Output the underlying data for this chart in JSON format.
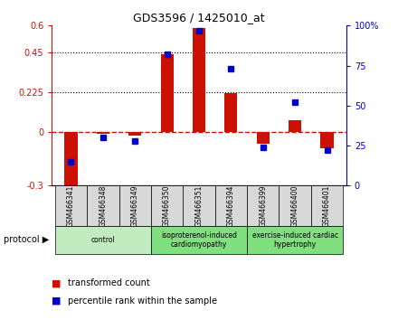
{
  "title": "GDS3596 / 1425010_at",
  "samples": [
    "GSM466341",
    "GSM466348",
    "GSM466349",
    "GSM466350",
    "GSM466351",
    "GSM466394",
    "GSM466399",
    "GSM466400",
    "GSM466401"
  ],
  "transformed_count": [
    -0.305,
    -0.01,
    -0.02,
    0.44,
    0.585,
    0.22,
    -0.065,
    0.07,
    -0.09
  ],
  "percentile_rank": [
    15,
    30,
    28,
    82,
    97,
    73,
    24,
    52,
    22
  ],
  "left_ylim": [
    -0.3,
    0.6
  ],
  "right_ylim": [
    0,
    100
  ],
  "left_yticks": [
    -0.3,
    0,
    0.225,
    0.45,
    0.6
  ],
  "right_yticks": [
    0,
    25,
    50,
    75,
    100
  ],
  "left_ytick_labels": [
    "-0.3",
    "0",
    "0.225",
    "0.45",
    "0.6"
  ],
  "right_ytick_labels": [
    "0",
    "25",
    "50",
    "75",
    "100%"
  ],
  "hlines": [
    0.225,
    0.45
  ],
  "group_boundaries": [
    {
      "label": "control",
      "start": 0,
      "end": 3,
      "color": "#c0ecc0"
    },
    {
      "label": "isoproterenol-induced\ncardiomyopathy",
      "start": 3,
      "end": 6,
      "color": "#80e080"
    },
    {
      "label": "exercise-induced cardiac\nhypertrophy",
      "start": 6,
      "end": 9,
      "color": "#80e080"
    }
  ],
  "bar_color": "#cc1100",
  "dot_color": "#0000cc",
  "zero_line_color": "#cc1100",
  "sample_box_color": "#d8d8d8",
  "protocol_label": "protocol ▶",
  "legend_items": [
    {
      "label": "transformed count",
      "color": "#cc1100"
    },
    {
      "label": "percentile rank within the sample",
      "color": "#0000cc"
    }
  ]
}
